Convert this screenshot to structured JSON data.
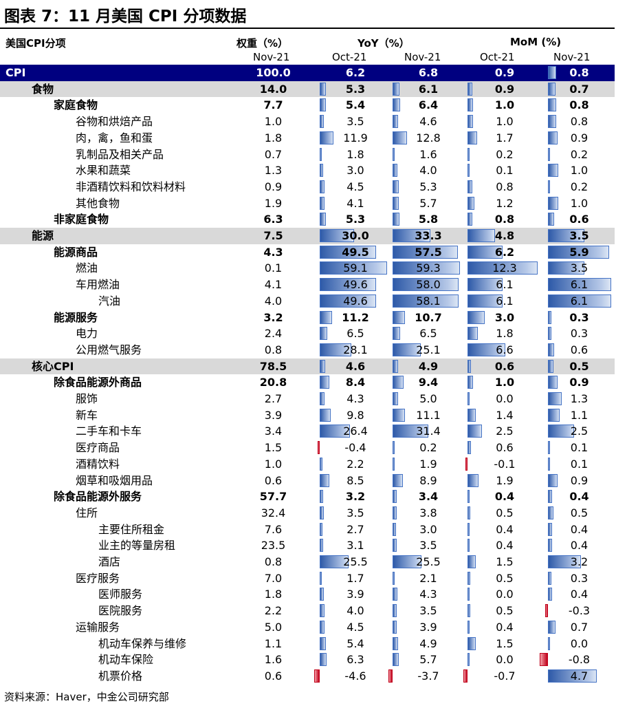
{
  "title": "图表 7：11 月美国 CPI 分项数据",
  "header": {
    "category": "美国CPI分项",
    "weight": "权重（%）",
    "yoy": "YoY（%）",
    "mom": "MoM (%)",
    "weight_period": "Nov-21",
    "yoy_oct": "Oct-21",
    "yoy_nov": "Nov-21",
    "mom_oct": "Oct-21",
    "mom_nov": "Nov-21"
  },
  "colors": {
    "cpi_row_bg": "#000080",
    "band_bg": "#d9d9d9",
    "positive_bar": "#4472c4",
    "negative_bar": "#c0001a"
  },
  "rows": [
    {
      "label": "CPI",
      "level": 0,
      "style": "cpi",
      "weight": "100.0",
      "yoy_oct": "6.2",
      "yoy_nov": "6.8",
      "mom_oct": "0.9",
      "mom_nov": "0.8"
    },
    {
      "label": "食物",
      "level": 1,
      "style": "band",
      "weight": "14.0",
      "yoy_oct": "5.3",
      "yoy_nov": "6.1",
      "mom_oct": "0.9",
      "mom_nov": "0.7"
    },
    {
      "label": "家庭食物",
      "level": 2,
      "style": "bold",
      "weight": "7.7",
      "yoy_oct": "5.4",
      "yoy_nov": "6.4",
      "mom_oct": "1.0",
      "mom_nov": "0.8"
    },
    {
      "label": "谷物和烘焙产品",
      "level": 3,
      "style": "",
      "weight": "1.0",
      "yoy_oct": "3.5",
      "yoy_nov": "4.6",
      "mom_oct": "1.0",
      "mom_nov": "0.8"
    },
    {
      "label": "肉，禽，鱼和蛋",
      "level": 3,
      "style": "",
      "weight": "1.8",
      "yoy_oct": "11.9",
      "yoy_nov": "12.8",
      "mom_oct": "1.7",
      "mom_nov": "0.9"
    },
    {
      "label": "乳制品及相关产品",
      "level": 3,
      "style": "",
      "weight": "0.7",
      "yoy_oct": "1.8",
      "yoy_nov": "1.6",
      "mom_oct": "0.2",
      "mom_nov": "0.2"
    },
    {
      "label": "水果和蔬菜",
      "level": 3,
      "style": "",
      "weight": "1.3",
      "yoy_oct": "3.0",
      "yoy_nov": "4.0",
      "mom_oct": "0.1",
      "mom_nov": "1.0"
    },
    {
      "label": "非酒精饮料和饮料材料",
      "level": 3,
      "style": "",
      "weight": "0.9",
      "yoy_oct": "4.5",
      "yoy_nov": "5.3",
      "mom_oct": "0.8",
      "mom_nov": "0.2"
    },
    {
      "label": "其他食物",
      "level": 3,
      "style": "",
      "weight": "1.9",
      "yoy_oct": "4.1",
      "yoy_nov": "5.7",
      "mom_oct": "1.2",
      "mom_nov": "1.0"
    },
    {
      "label": "非家庭食物",
      "level": 2,
      "style": "bold",
      "weight": "6.3",
      "yoy_oct": "5.3",
      "yoy_nov": "5.8",
      "mom_oct": "0.8",
      "mom_nov": "0.6"
    },
    {
      "label": "能源",
      "level": 1,
      "style": "band",
      "weight": "7.5",
      "yoy_oct": "30.0",
      "yoy_nov": "33.3",
      "mom_oct": "4.8",
      "mom_nov": "3.5"
    },
    {
      "label": "能源商品",
      "level": 2,
      "style": "bold",
      "weight": "4.3",
      "yoy_oct": "49.5",
      "yoy_nov": "57.5",
      "mom_oct": "6.2",
      "mom_nov": "5.9"
    },
    {
      "label": "燃油",
      "level": 3,
      "style": "",
      "weight": "0.1",
      "yoy_oct": "59.1",
      "yoy_nov": "59.3",
      "mom_oct": "12.3",
      "mom_nov": "3.5"
    },
    {
      "label": "车用燃油",
      "level": 3,
      "style": "",
      "weight": "4.1",
      "yoy_oct": "49.6",
      "yoy_nov": "58.0",
      "mom_oct": "6.1",
      "mom_nov": "6.1"
    },
    {
      "label": "汽油",
      "level": 4,
      "style": "",
      "weight": "4.0",
      "yoy_oct": "49.6",
      "yoy_nov": "58.1",
      "mom_oct": "6.1",
      "mom_nov": "6.1"
    },
    {
      "label": "能源服务",
      "level": 2,
      "style": "bold",
      "weight": "3.2",
      "yoy_oct": "11.2",
      "yoy_nov": "10.7",
      "mom_oct": "3.0",
      "mom_nov": "0.3"
    },
    {
      "label": "电力",
      "level": 3,
      "style": "",
      "weight": "2.4",
      "yoy_oct": "6.5",
      "yoy_nov": "6.5",
      "mom_oct": "1.8",
      "mom_nov": "0.3"
    },
    {
      "label": "公用燃气服务",
      "level": 3,
      "style": "",
      "weight": "0.8",
      "yoy_oct": "28.1",
      "yoy_nov": "25.1",
      "mom_oct": "6.6",
      "mom_nov": "0.6"
    },
    {
      "label": "核心CPI",
      "level": 1,
      "style": "band",
      "weight": "78.5",
      "yoy_oct": "4.6",
      "yoy_nov": "4.9",
      "mom_oct": "0.6",
      "mom_nov": "0.5"
    },
    {
      "label": "除食品能源外商品",
      "level": 2,
      "style": "bold",
      "weight": "20.8",
      "yoy_oct": "8.4",
      "yoy_nov": "9.4",
      "mom_oct": "1.0",
      "mom_nov": "0.9"
    },
    {
      "label": "服饰",
      "level": 3,
      "style": "",
      "weight": "2.7",
      "yoy_oct": "4.3",
      "yoy_nov": "5.0",
      "mom_oct": "0.0",
      "mom_nov": "1.3"
    },
    {
      "label": "新车",
      "level": 3,
      "style": "",
      "weight": "3.9",
      "yoy_oct": "9.8",
      "yoy_nov": "11.1",
      "mom_oct": "1.4",
      "mom_nov": "1.1"
    },
    {
      "label": "二手车和卡车",
      "level": 3,
      "style": "",
      "weight": "3.4",
      "yoy_oct": "26.4",
      "yoy_nov": "31.4",
      "mom_oct": "2.5",
      "mom_nov": "2.5"
    },
    {
      "label": "医疗商品",
      "level": 3,
      "style": "",
      "weight": "1.5",
      "yoy_oct": "-0.4",
      "yoy_nov": "0.2",
      "mom_oct": "0.6",
      "mom_nov": "0.1"
    },
    {
      "label": "酒精饮料",
      "level": 3,
      "style": "",
      "weight": "1.0",
      "yoy_oct": "2.2",
      "yoy_nov": "1.9",
      "mom_oct": "-0.1",
      "mom_nov": "0.1"
    },
    {
      "label": "烟草和吸烟用品",
      "level": 3,
      "style": "",
      "weight": "0.6",
      "yoy_oct": "8.5",
      "yoy_nov": "8.9",
      "mom_oct": "1.9",
      "mom_nov": "0.9"
    },
    {
      "label": "除食品能源外服务",
      "level": 2,
      "style": "bold",
      "weight": "57.7",
      "yoy_oct": "3.2",
      "yoy_nov": "3.4",
      "mom_oct": "0.4",
      "mom_nov": "0.4"
    },
    {
      "label": "住所",
      "level": 3,
      "style": "",
      "weight": "32.4",
      "yoy_oct": "3.5",
      "yoy_nov": "3.8",
      "mom_oct": "0.5",
      "mom_nov": "0.5"
    },
    {
      "label": "主要住所租金",
      "level": 4,
      "style": "",
      "weight": "7.6",
      "yoy_oct": "2.7",
      "yoy_nov": "3.0",
      "mom_oct": "0.4",
      "mom_nov": "0.4"
    },
    {
      "label": "业主的等量房租",
      "level": 4,
      "style": "",
      "weight": "23.5",
      "yoy_oct": "3.1",
      "yoy_nov": "3.5",
      "mom_oct": "0.4",
      "mom_nov": "0.4"
    },
    {
      "label": "酒店",
      "level": 4,
      "style": "",
      "weight": "0.8",
      "yoy_oct": "25.5",
      "yoy_nov": "25.5",
      "mom_oct": "1.5",
      "mom_nov": "3.2"
    },
    {
      "label": "医疗服务",
      "level": 3,
      "style": "",
      "weight": "7.0",
      "yoy_oct": "1.7",
      "yoy_nov": "2.1",
      "mom_oct": "0.5",
      "mom_nov": "0.3"
    },
    {
      "label": "医师服务",
      "level": 4,
      "style": "",
      "weight": "1.8",
      "yoy_oct": "3.9",
      "yoy_nov": "4.3",
      "mom_oct": "0.0",
      "mom_nov": "0.4"
    },
    {
      "label": "医院服务",
      "level": 4,
      "style": "",
      "weight": "2.2",
      "yoy_oct": "4.0",
      "yoy_nov": "3.5",
      "mom_oct": "0.5",
      "mom_nov": "-0.3"
    },
    {
      "label": "运输服务",
      "level": 3,
      "style": "",
      "weight": "5.0",
      "yoy_oct": "4.5",
      "yoy_nov": "3.9",
      "mom_oct": "0.4",
      "mom_nov": "0.7"
    },
    {
      "label": "机动车保养与维修",
      "level": 4,
      "style": "",
      "weight": "1.1",
      "yoy_oct": "5.4",
      "yoy_nov": "4.9",
      "mom_oct": "1.5",
      "mom_nov": "0.0"
    },
    {
      "label": "机动车保险",
      "level": 4,
      "style": "",
      "weight": "1.6",
      "yoy_oct": "6.3",
      "yoy_nov": "5.7",
      "mom_oct": "0.0",
      "mom_nov": "-0.8"
    },
    {
      "label": "机票价格",
      "level": 4,
      "style": "",
      "weight": "0.6",
      "yoy_oct": "-4.6",
      "yoy_nov": "-3.7",
      "mom_oct": "-0.7",
      "mom_nov": "4.7"
    }
  ],
  "footer": "资料来源：Haver，中金公司研究部"
}
